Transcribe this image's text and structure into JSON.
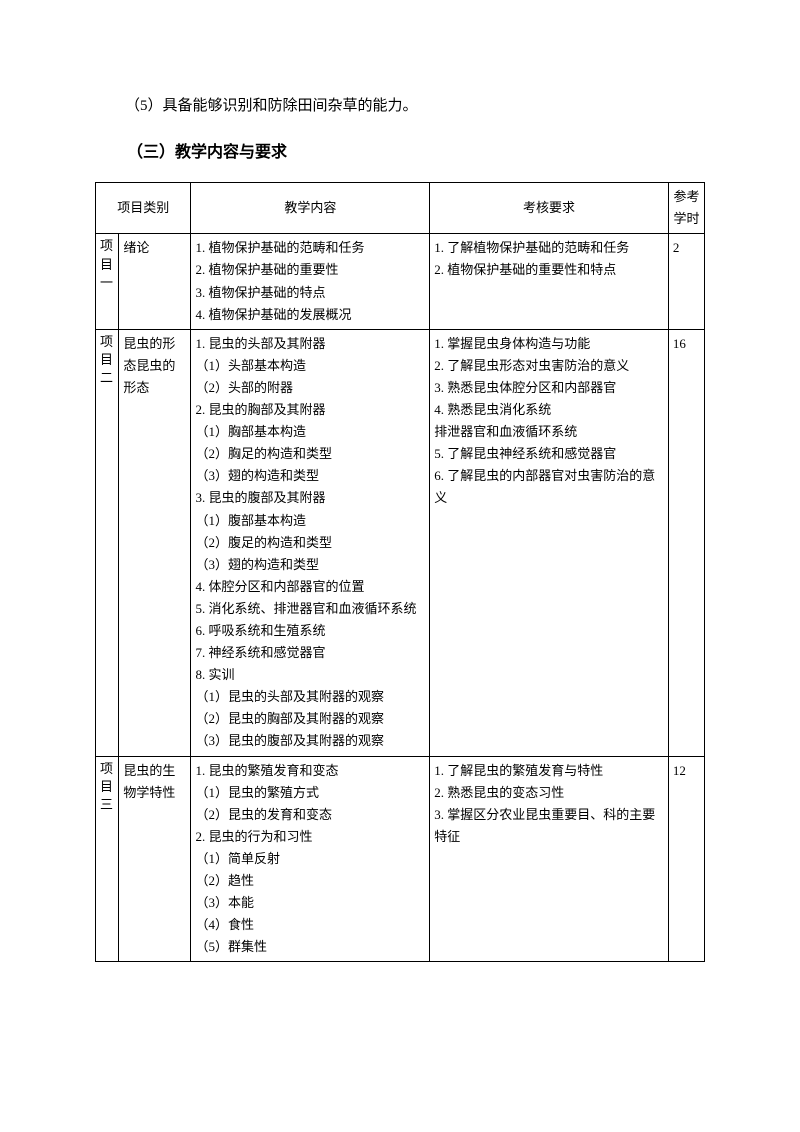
{
  "intro_line": "（5）具备能够识别和防除田间杂草的能力。",
  "section_heading": "（三）教学内容与要求",
  "table": {
    "headers": {
      "category": "项目类别",
      "teaching": "教学内容",
      "evaluation": "考核要求",
      "hours": "参考学时"
    },
    "rows": [
      {
        "proj": "项目一",
        "sub": "绪论",
        "teach": "1. 植物保护基础的范畴和任务\n2. 植物保护基础的重要性\n3. 植物保护基础的特点\n4. 植物保护基础的发展概况",
        "eval": "1. 了解植物保护基础的范畴和任务\n2. 植物保护基础的重要性和特点",
        "hours": "2"
      },
      {
        "proj": "项目二",
        "sub": "昆虫的形态昆虫的形态",
        "teach": "1. 昆虫的头部及其附器\n（1）头部基本构造\n（2）头部的附器\n2. 昆虫的胸部及其附器\n（1）胸部基本构造\n（2）胸足的构造和类型\n（3）翅的构造和类型\n3. 昆虫的腹部及其附器\n（1）腹部基本构造\n（2）腹足的构造和类型\n（3）翅的构造和类型\n4. 体腔分区和内部器官的位置\n 5. 消化系统、排泄器官和血液循环系统\n6. 呼吸系统和生殖系统\n7. 神经系统和感觉器官\n8. 实训\n（1）昆虫的头部及其附器的观察\n（2）昆虫的胸部及其附器的观察\n（3）昆虫的腹部及其附器的观察",
        "eval": "1. 掌握昆虫身体构造与功能\n2. 了解昆虫形态对虫害防治的意义\n3. 熟悉昆虫体腔分区和内部器官\n4. 熟悉昆虫消化系统\n排泄器官和血液循环系统\n5. 了解昆虫神经系统和感觉器官\n6. 了解昆虫的内部器官对虫害防治的意义",
        "hours": "16"
      },
      {
        "proj": "项目三",
        "sub": "昆虫的生物学特性",
        "teach": "1. 昆虫的繁殖发育和变态\n（1）昆虫的繁殖方式\n（2）昆虫的发育和变态\n2. 昆虫的行为和习性\n（1）简单反射\n（2）趋性\n（3）本能\n（4）食性\n（5）群集性",
        "eval": "1. 了解昆虫的繁殖发育与特性\n2. 熟悉昆虫的变态习性\n3. 掌握区分农业昆虫重要目、科的主要特征",
        "hours": "12"
      }
    ]
  }
}
